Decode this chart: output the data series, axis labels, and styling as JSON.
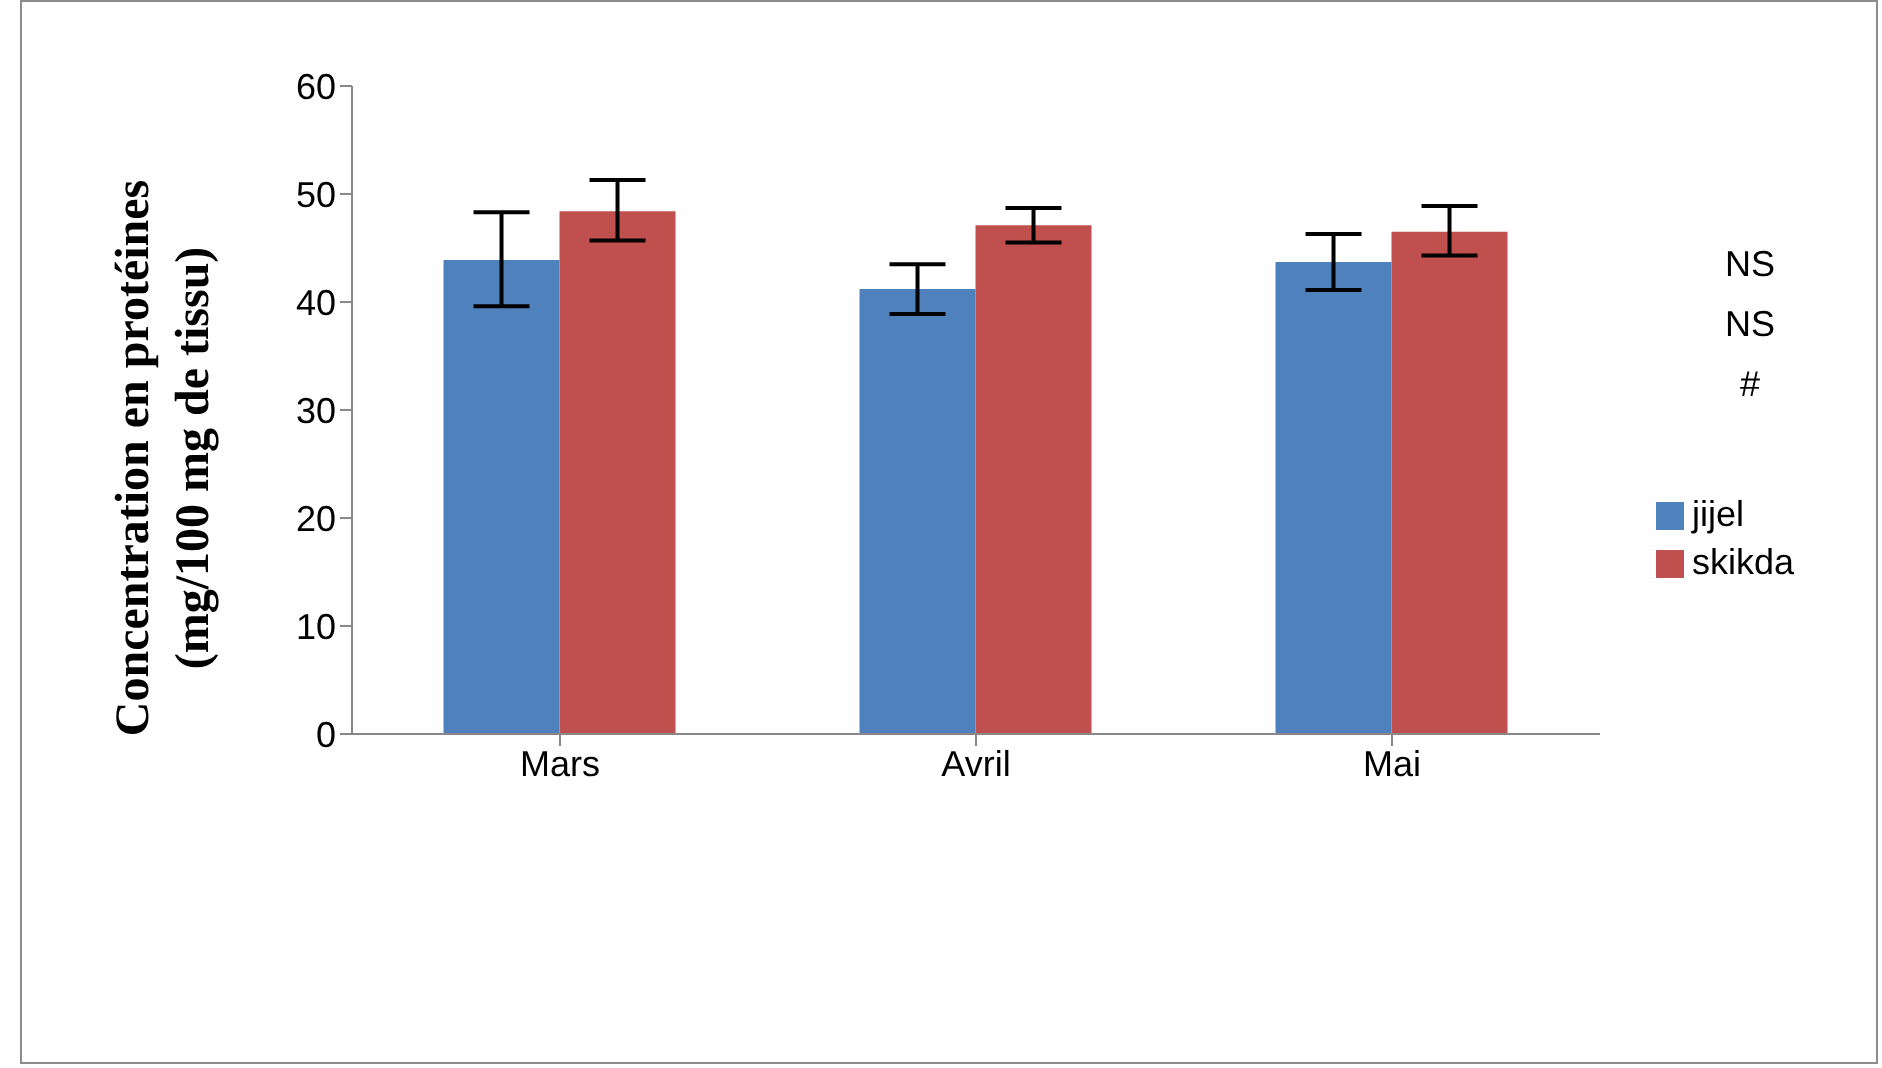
{
  "chart_data": {
    "type": "bar",
    "ylabel": "Concentration en protéines\n(mg/100 mg de tissu)",
    "categories": [
      "Mars",
      "Avril",
      "Mai"
    ],
    "series": [
      {
        "name": "jijel",
        "color": "#4f81bd",
        "values": [
          43.9,
          41.2,
          43.7
        ],
        "errors": [
          [
            39.6,
            48.3
          ],
          [
            38.9,
            43.5
          ],
          [
            41.1,
            46.3
          ]
        ]
      },
      {
        "name": "skikda",
        "color": "#c0504d",
        "values": [
          48.4,
          47.1,
          46.5
        ],
        "errors": [
          [
            45.7,
            51.3
          ],
          [
            45.5,
            48.7
          ],
          [
            44.3,
            48.9
          ]
        ]
      }
    ],
    "ylim": [
      0,
      60
    ],
    "yticks": [
      0,
      10,
      20,
      30,
      40,
      50,
      60
    ],
    "annotations": [
      "NS",
      "NS",
      "#"
    ],
    "legend": "right",
    "grid": false
  }
}
